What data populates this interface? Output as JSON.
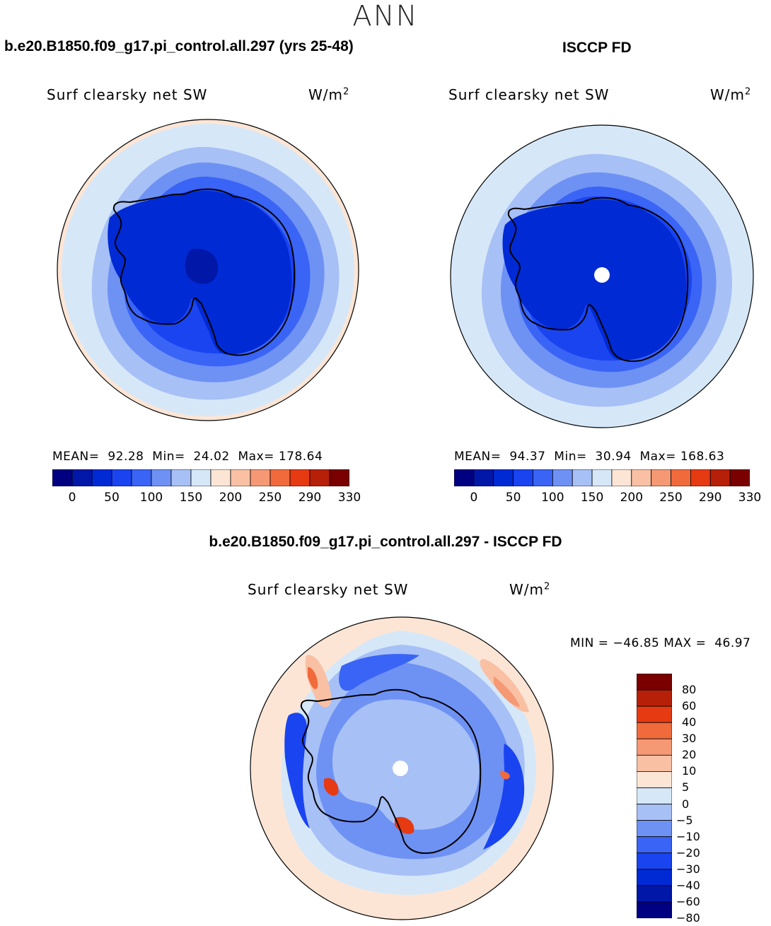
{
  "title": "ANN",
  "units_base": "W/m",
  "units_exp": "2",
  "panels": [
    {
      "title": "b.e20.B1850.f09_g17.pi_control.all.297 (yrs 25-48)",
      "variable": "Surf clearsky net SW",
      "stats": {
        "mean_label": "MEAN=",
        "mean": "92.28",
        "min_label": "Min=",
        "min": "24.02",
        "max_label": "Max=",
        "max": "178.64"
      }
    },
    {
      "title": "ISCCP FD",
      "variable": "Surf clearsky net SW",
      "stats": {
        "mean_label": "MEAN=",
        "mean": "94.37",
        "min_label": "Min=",
        "min": "30.94",
        "max_label": "Max=",
        "max": "168.63"
      }
    },
    {
      "title": "b.e20.B1850.f09_g17.pi_control.all.297 - ISCCP FD",
      "variable": "Surf clearsky net SW",
      "stats": {
        "min_label": "MIN =",
        "min": "−46.85",
        "max_label": "MAX =",
        "max": "46.97"
      }
    }
  ],
  "colorbar_main": {
    "colors": [
      "#000080",
      "#0017a8",
      "#002ad4",
      "#1a44f0",
      "#3a64f5",
      "#6e91f4",
      "#a7c0f6",
      "#d6e8f8",
      "#fde5d5",
      "#f9c0a4",
      "#f59874",
      "#f06a3c",
      "#e63a13",
      "#b72008",
      "#7a0000"
    ],
    "ticks": [
      "0",
      "50",
      "100",
      "150",
      "200",
      "250",
      "290",
      "330"
    ]
  },
  "colorbar_diff": {
    "colors_top_to_bottom": [
      "#7a0000",
      "#b72008",
      "#e63a13",
      "#f06a3c",
      "#f59874",
      "#f9c0a4",
      "#fde5d5",
      "#d6e8f8",
      "#a7c0f6",
      "#6e91f4",
      "#3a64f5",
      "#1a44f0",
      "#002ad4",
      "#0017a8",
      "#000080"
    ],
    "ticks": [
      "80",
      "60",
      "40",
      "30",
      "20",
      "10",
      "5",
      "0",
      "−5",
      "−10",
      "−20",
      "−30",
      "−40",
      "−60",
      "−80"
    ]
  }
}
